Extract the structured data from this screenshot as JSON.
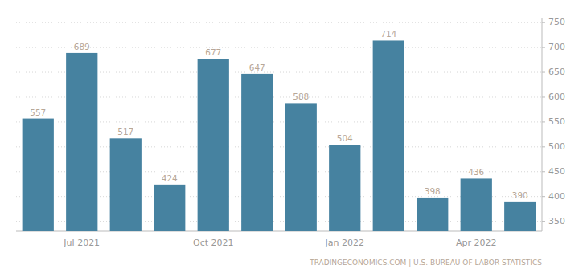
{
  "chart_data": {
    "type": "bar",
    "categories": [
      null,
      "Jul 2021",
      null,
      null,
      "Oct 2021",
      null,
      null,
      "Jan 2022",
      null,
      null,
      "Apr 2022",
      null
    ],
    "values": [
      557,
      689,
      517,
      424,
      677,
      647,
      588,
      504,
      714,
      398,
      436,
      390
    ],
    "color": "#4682a0",
    "ylim": [
      330,
      760
    ],
    "yticks": [
      350,
      400,
      450,
      500,
      550,
      600,
      650,
      700,
      750
    ],
    "grid": true,
    "data_labels": true,
    "annotations": [
      "TRADINGECONOMICS.COM | U.S. BUREAU OF LABOR STATISTICS"
    ]
  }
}
